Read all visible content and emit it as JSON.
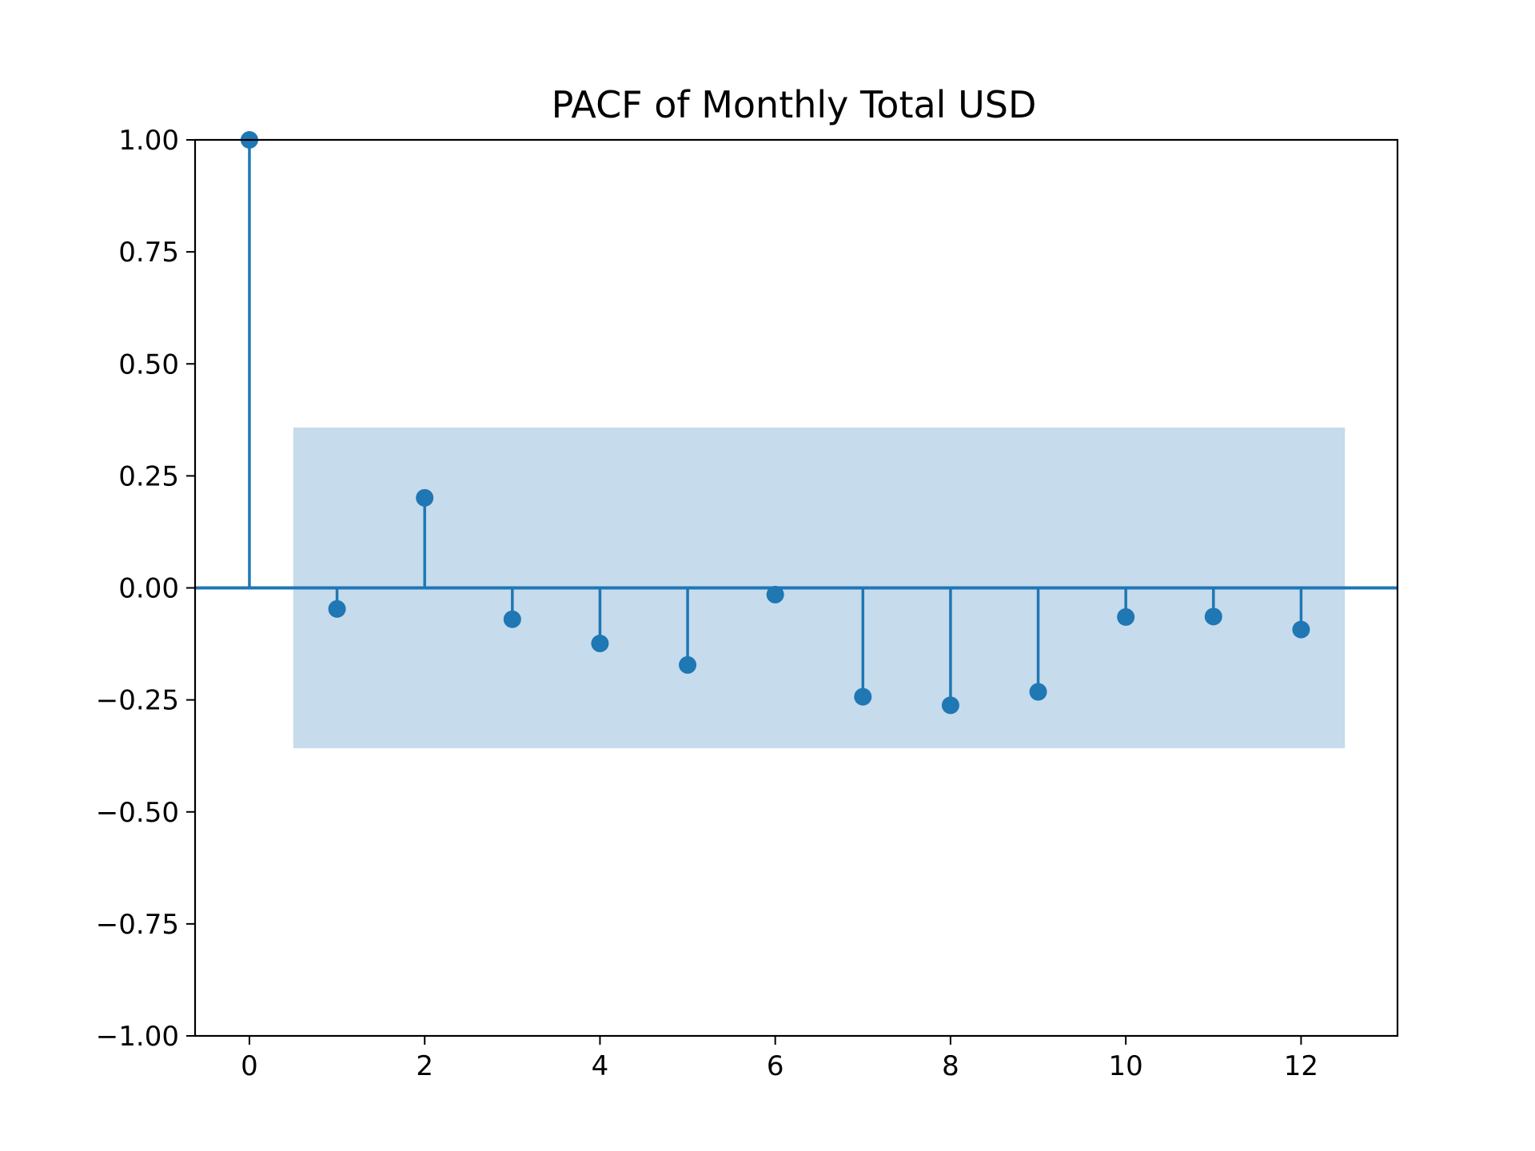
{
  "chart_data": {
    "type": "stem",
    "title": "PACF of Monthly Total USD",
    "xlabel": "",
    "ylabel": "",
    "xlim": [
      -0.62,
      13.1
    ],
    "ylim": [
      -1.0,
      1.0
    ],
    "x_ticks": [
      0,
      2,
      4,
      6,
      8,
      10,
      12
    ],
    "x_tick_labels": [
      "0",
      "2",
      "4",
      "6",
      "8",
      "10",
      "12"
    ],
    "y_ticks": [
      1.0,
      0.75,
      0.5,
      0.25,
      0.0,
      -0.25,
      -0.5,
      -0.75,
      -1.0
    ],
    "y_tick_labels": [
      "1.00",
      "0.75",
      "0.50",
      "0.25",
      "0.00",
      "−0.25",
      "−0.50",
      "−0.75",
      "−1.00"
    ],
    "lags": [
      0,
      1,
      2,
      3,
      4,
      5,
      6,
      7,
      8,
      9,
      10,
      11,
      12
    ],
    "values": [
      1.0,
      -0.047,
      0.201,
      -0.07,
      -0.124,
      -0.172,
      -0.015,
      -0.243,
      -0.262,
      -0.232,
      -0.065,
      -0.064,
      -0.093
    ],
    "confidence_band": {
      "x_range": [
        0.5,
        12.5
      ],
      "lower": -0.358,
      "upper": 0.358
    },
    "grid": false,
    "colors": {
      "stem": "#1f77b4",
      "band": "#c6dbec",
      "axes": "#000000"
    }
  }
}
